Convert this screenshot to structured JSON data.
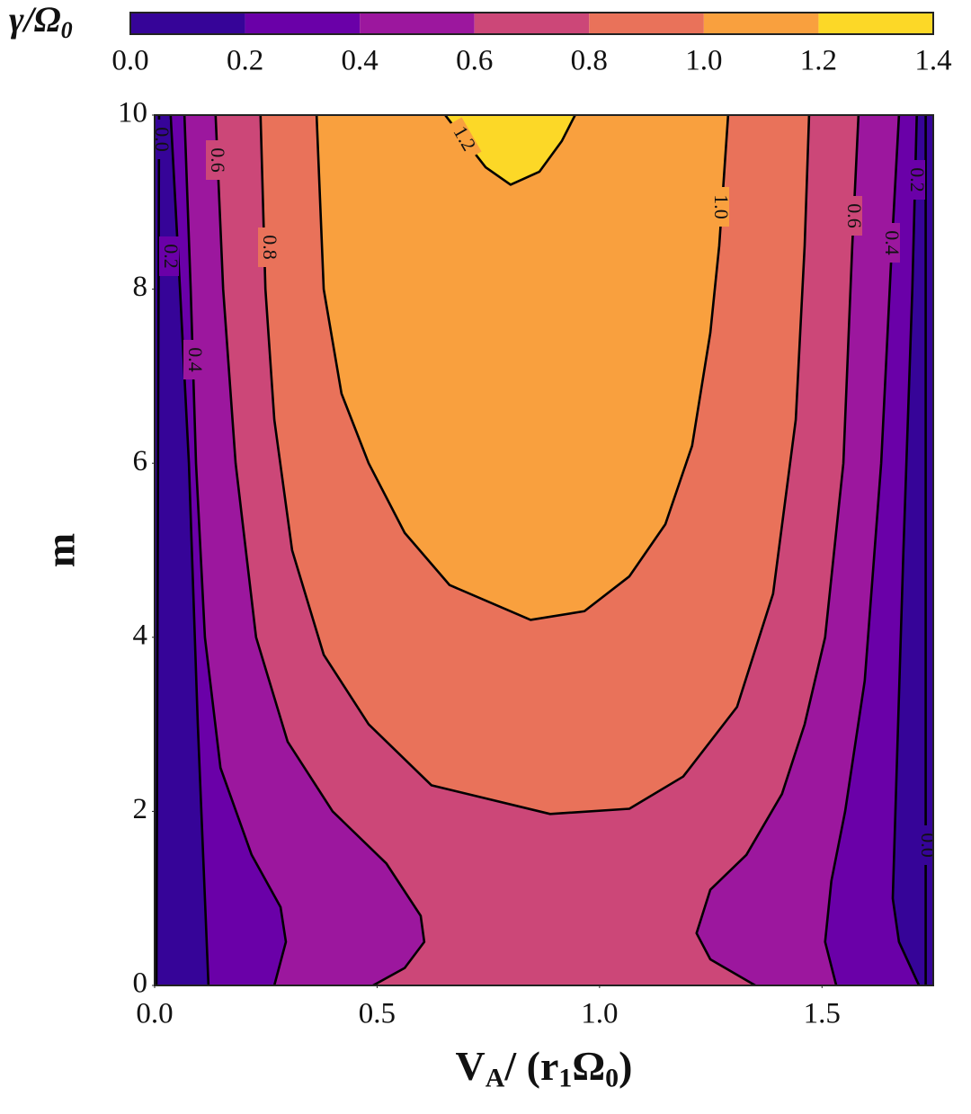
{
  "chart_data": {
    "type": "contour",
    "colorbar_label": [
      {
        "text": "γ/Ω"
      },
      {
        "text": "0",
        "sub": true
      }
    ],
    "xlabel": [
      {
        "text": "V"
      },
      {
        "text": "A",
        "sub": true
      },
      {
        "text": "/ (r"
      },
      {
        "text": "1",
        "sub": true
      },
      {
        "text": "Ω"
      },
      {
        "text": "0",
        "sub": true
      },
      {
        "text": ")"
      }
    ],
    "ylabel": "m",
    "xlim": [
      0,
      1.75
    ],
    "ylim": [
      0,
      10
    ],
    "xticks": [
      {
        "value": 0,
        "label": "0.0"
      },
      0.5,
      {
        "value": 1,
        "label": "1.0"
      },
      1.5
    ],
    "yticks": [
      0,
      2,
      4,
      6,
      8,
      10
    ],
    "levels": [
      {
        "value": 0,
        "label": "0.0"
      },
      0.2,
      0.4,
      0.6,
      0.8,
      {
        "value": 1,
        "label": "1.0"
      },
      1.2,
      1.4
    ],
    "colors": [
      "#360498",
      "#6a00a8",
      "#9c179e",
      "#cc4778",
      "#e9725a",
      "#f9a03e",
      "#fcd827"
    ],
    "contours": [
      {
        "level": 0,
        "label": "0.0",
        "x": [
          0.01,
          0.004,
          null,
          1.733,
          1.733
        ],
        "y": [
          10,
          0,
          null,
          0,
          10
        ]
      },
      {
        "level": 0.2,
        "x": [
          0.036,
          0.057,
          0.077,
          0.097,
          0.113,
          0.121,
          null,
          1.718,
          1.673,
          1.659,
          1.665,
          1.683,
          1.703,
          1.713
        ],
        "y": [
          10,
          8,
          6,
          3,
          1,
          0,
          null,
          0,
          0.5,
          1,
          2,
          5,
          8,
          10
        ]
      },
      {
        "level": 0.4,
        "x": [
          0.067,
          0.081,
          0.093,
          0.113,
          0.148,
          0.218,
          0.283,
          0.295,
          0.269,
          null,
          1.532,
          1.507,
          1.521,
          1.552,
          1.596,
          1.633,
          1.657,
          1.673
        ],
        "y": [
          10,
          8,
          6,
          4,
          2.5,
          1.5,
          0.9,
          0.5,
          0,
          null,
          0,
          0.5,
          1.2,
          2,
          3.5,
          6,
          8.5,
          10
        ]
      },
      {
        "level": 0.6,
        "x": [
          0.137,
          0.154,
          0.182,
          0.228,
          0.299,
          0.4,
          0.521,
          0.598,
          0.606,
          0.562,
          0.491,
          null,
          1.35,
          1.249,
          1.218,
          1.249,
          1.33,
          1.41,
          1.461,
          1.507,
          1.548,
          1.568,
          1.582
        ],
        "y": [
          10,
          8,
          6,
          4,
          2.8,
          2,
          1.4,
          0.8,
          0.5,
          0.2,
          0,
          null,
          0,
          0.3,
          0.6,
          1.1,
          1.5,
          2.2,
          3,
          4,
          6,
          8.5,
          10
        ]
      },
      {
        "level": 0.8,
        "x": [
          0.238,
          0.249,
          0.269,
          0.309,
          0.38,
          0.481,
          0.622,
          0.889,
          1.067,
          1.188,
          1.309,
          1.39,
          1.441,
          1.461,
          1.471
        ],
        "y": [
          10,
          8,
          6.5,
          5,
          3.8,
          3,
          2.3,
          1.97,
          2.03,
          2.4,
          3.2,
          4.5,
          6.5,
          8.5,
          10
        ]
      },
      {
        "level": 1,
        "label": "1.0",
        "x": [
          0.364,
          0.38,
          0.42,
          0.481,
          0.562,
          0.663,
          0.845,
          0.966,
          1.067,
          1.148,
          1.208,
          1.249,
          1.269,
          1.289
        ],
        "y": [
          10,
          8,
          6.8,
          6,
          5.2,
          4.6,
          4.2,
          4.3,
          4.7,
          5.3,
          6.2,
          7.5,
          8.5,
          10
        ]
      },
      {
        "level": 1.2,
        "x": [
          0.653,
          0.683,
          0.744,
          0.8,
          0.865,
          0.915,
          0.945
        ],
        "y": [
          10,
          9.8,
          9.4,
          9.2,
          9.35,
          9.7,
          10
        ]
      }
    ]
  }
}
